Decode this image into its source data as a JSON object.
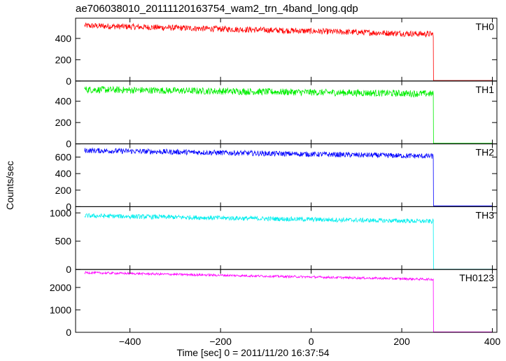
{
  "chart_data": {
    "type": "line",
    "title": "ae706038010_20111120163754_wam2_trn_4band_long.qdp",
    "xlabel": "Time [sec] 0 = 2011/11/20 16:37:54",
    "ylabel": "Counts/sec",
    "xlim": [
      -520,
      410
    ],
    "x_ticks": [
      -400,
      -200,
      0,
      200,
      400
    ],
    "x_tick_labels": [
      "−400",
      "−200",
      "0",
      "200",
      "400"
    ],
    "drop_time": 270,
    "start_time": -500,
    "end_time": 400,
    "series": [
      {
        "name": "TH0",
        "color": "#ff0000",
        "ylim": [
          0,
          590
        ],
        "yticks": [
          0,
          200,
          400
        ],
        "start_level": 520,
        "end_level": 440,
        "noise": 28,
        "after_level": 5
      },
      {
        "name": "TH1",
        "color": "#00ee00",
        "ylim": [
          0,
          590
        ],
        "yticks": [
          0,
          200,
          400
        ],
        "start_level": 510,
        "end_level": 470,
        "noise": 32,
        "after_level": 5
      },
      {
        "name": "TH2",
        "color": "#0000ff",
        "ylim": [
          0,
          760
        ],
        "yticks": [
          0,
          200,
          400,
          600
        ],
        "start_level": 680,
        "end_level": 610,
        "noise": 32,
        "after_level": 10
      },
      {
        "name": "TH3",
        "color": "#00eeee",
        "ylim": [
          0,
          1110
        ],
        "yticks": [
          0,
          500,
          1000
        ],
        "start_level": 950,
        "end_level": 850,
        "noise": 40,
        "after_level": 5
      },
      {
        "name": "TH0123",
        "color": "#ff00ff",
        "ylim": [
          0,
          2800
        ],
        "yticks": [
          0,
          1000,
          2000
        ],
        "start_level": 2660,
        "end_level": 2360,
        "noise": 50,
        "after_level": 20
      }
    ]
  }
}
